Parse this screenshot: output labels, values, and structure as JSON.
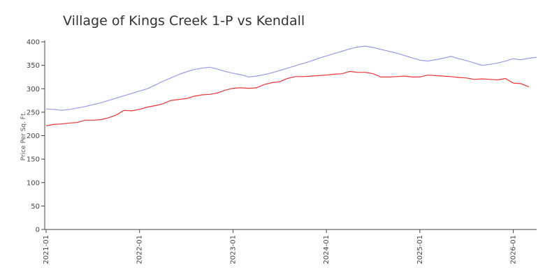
{
  "chart_data": {
    "type": "line",
    "title": "Village of Kings Creek 1-P vs Kendall",
    "xlabel": "",
    "ylabel": "Price Per Sq. Ft.",
    "ylim": [
      0,
      400
    ],
    "yticks": [
      0,
      50,
      100,
      150,
      200,
      250,
      300,
      350,
      400
    ],
    "xlim": [
      "2021-01",
      "2026-03"
    ],
    "xticks": [
      "2021-01",
      "2022-01",
      "2023-01",
      "2024-01",
      "2025-01",
      "2026-01"
    ],
    "grid": false,
    "legend": "none",
    "series": [
      {
        "color": "#9999ee",
        "points": [
          [
            "2021-01",
            257
          ],
          [
            "2021-02",
            256
          ],
          [
            "2021-03",
            254
          ],
          [
            "2021-04",
            256
          ],
          [
            "2021-05",
            259
          ],
          [
            "2021-06",
            262
          ],
          [
            "2021-07",
            266
          ],
          [
            "2021-08",
            270
          ],
          [
            "2021-09",
            275
          ],
          [
            "2021-10",
            280
          ],
          [
            "2021-11",
            285
          ],
          [
            "2021-12",
            290
          ],
          [
            "2022-01",
            295
          ],
          [
            "2022-02",
            300
          ],
          [
            "2022-03",
            308
          ],
          [
            "2022-04",
            316
          ],
          [
            "2022-05",
            323
          ],
          [
            "2022-06",
            330
          ],
          [
            "2022-07",
            336
          ],
          [
            "2022-08",
            341
          ],
          [
            "2022-09",
            344
          ],
          [
            "2022-10",
            346
          ],
          [
            "2022-11",
            342
          ],
          [
            "2022-12",
            337
          ],
          [
            "2023-01",
            333
          ],
          [
            "2023-02",
            330
          ],
          [
            "2023-03",
            325
          ],
          [
            "2023-04",
            327
          ],
          [
            "2023-05",
            330
          ],
          [
            "2023-06",
            334
          ],
          [
            "2023-07",
            339
          ],
          [
            "2023-08",
            344
          ],
          [
            "2023-09",
            349
          ],
          [
            "2023-10",
            354
          ],
          [
            "2023-11",
            359
          ],
          [
            "2023-12",
            365
          ],
          [
            "2024-01",
            370
          ],
          [
            "2024-02",
            375
          ],
          [
            "2024-03",
            380
          ],
          [
            "2024-04",
            385
          ],
          [
            "2024-05",
            389
          ],
          [
            "2024-06",
            391
          ],
          [
            "2024-07",
            388
          ],
          [
            "2024-08",
            384
          ],
          [
            "2024-09",
            380
          ],
          [
            "2024-10",
            376
          ],
          [
            "2024-11",
            371
          ],
          [
            "2024-12",
            366
          ],
          [
            "2025-01",
            361
          ],
          [
            "2025-02",
            359
          ],
          [
            "2025-03",
            362
          ],
          [
            "2025-04",
            365
          ],
          [
            "2025-05",
            369
          ],
          [
            "2025-06",
            364
          ],
          [
            "2025-07",
            360
          ],
          [
            "2025-08",
            355
          ],
          [
            "2025-09",
            350
          ],
          [
            "2025-10",
            352
          ],
          [
            "2025-11",
            355
          ],
          [
            "2025-12",
            359
          ],
          [
            "2026-01",
            364
          ],
          [
            "2026-02",
            362
          ],
          [
            "2026-03",
            365
          ],
          [
            "2026-04",
            367
          ]
        ]
      },
      {
        "color": "#ee3333",
        "points": [
          [
            "2021-01",
            221
          ],
          [
            "2021-02",
            224
          ],
          [
            "2021-03",
            225
          ],
          [
            "2021-04",
            227
          ],
          [
            "2021-05",
            228
          ],
          [
            "2021-06",
            233
          ],
          [
            "2021-07",
            233
          ],
          [
            "2021-08",
            234
          ],
          [
            "2021-09",
            238
          ],
          [
            "2021-10",
            244
          ],
          [
            "2021-11",
            254
          ],
          [
            "2021-12",
            253
          ],
          [
            "2022-01",
            256
          ],
          [
            "2022-02",
            261
          ],
          [
            "2022-03",
            264
          ],
          [
            "2022-04",
            268
          ],
          [
            "2022-05",
            275
          ],
          [
            "2022-06",
            277
          ],
          [
            "2022-07",
            279
          ],
          [
            "2022-08",
            284
          ],
          [
            "2022-09",
            287
          ],
          [
            "2022-10",
            288
          ],
          [
            "2022-11",
            291
          ],
          [
            "2022-12",
            297
          ],
          [
            "2023-01",
            301
          ],
          [
            "2023-02",
            302
          ],
          [
            "2023-03",
            301
          ],
          [
            "2023-04",
            302
          ],
          [
            "2023-05",
            309
          ],
          [
            "2023-06",
            313
          ],
          [
            "2023-07",
            315
          ],
          [
            "2023-08",
            322
          ],
          [
            "2023-09",
            326
          ],
          [
            "2023-10",
            326
          ],
          [
            "2023-11",
            327
          ],
          [
            "2023-12",
            328
          ],
          [
            "2024-01",
            329
          ],
          [
            "2024-02",
            331
          ],
          [
            "2024-03",
            332
          ],
          [
            "2024-04",
            337
          ],
          [
            "2024-05",
            335
          ],
          [
            "2024-06",
            335
          ],
          [
            "2024-07",
            332
          ],
          [
            "2024-08",
            325
          ],
          [
            "2024-09",
            325
          ],
          [
            "2024-10",
            326
          ],
          [
            "2024-11",
            327
          ],
          [
            "2024-12",
            325
          ],
          [
            "2025-01",
            325
          ],
          [
            "2025-02",
            329
          ],
          [
            "2025-03",
            328
          ],
          [
            "2025-04",
            327
          ],
          [
            "2025-05",
            326
          ],
          [
            "2025-06",
            324
          ],
          [
            "2025-07",
            323
          ],
          [
            "2025-08",
            320
          ],
          [
            "2025-09",
            321
          ],
          [
            "2025-10",
            320
          ],
          [
            "2025-11",
            319
          ],
          [
            "2025-12",
            322
          ],
          [
            "2026-01",
            312
          ],
          [
            "2026-02",
            311
          ],
          [
            "2026-03",
            304
          ]
        ]
      }
    ]
  }
}
